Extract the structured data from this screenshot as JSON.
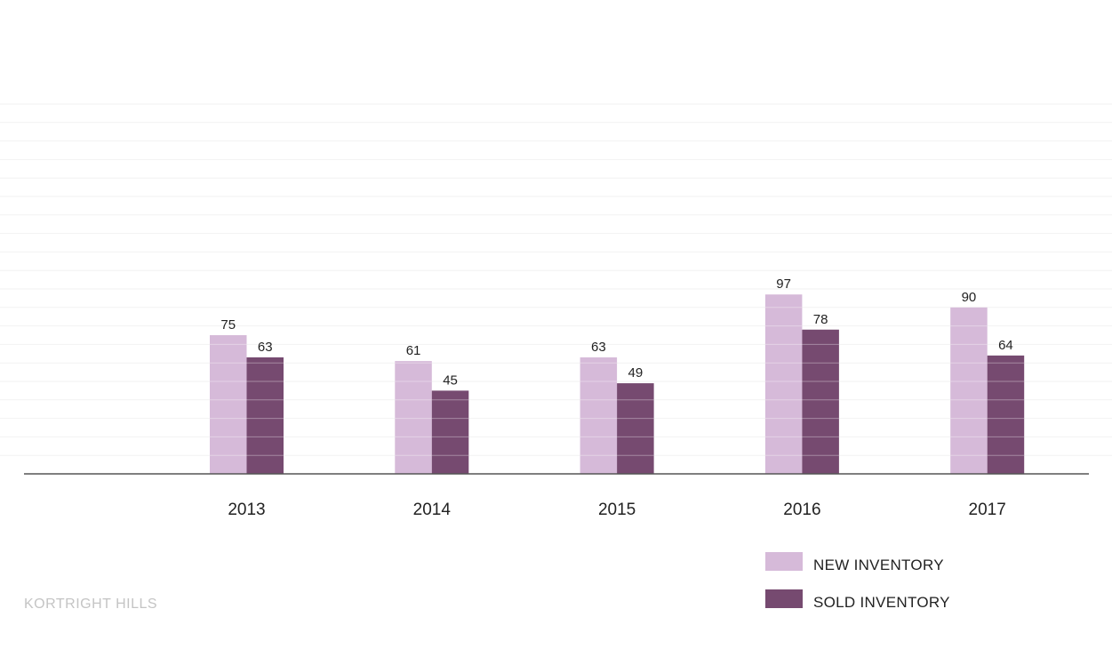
{
  "chart_data": {
    "type": "bar",
    "title": "",
    "xlabel": "",
    "ylabel": "",
    "categories": [
      "2013",
      "2014",
      "2015",
      "2016",
      "2017"
    ],
    "series": [
      {
        "name": "NEW INVENTORY",
        "values": [
          75,
          61,
          63,
          97,
          90
        ],
        "color": "#d6bad9"
      },
      {
        "name": "SOLD INVENTORY",
        "values": [
          63,
          45,
          49,
          78,
          64
        ],
        "color": "#764a70"
      }
    ],
    "ylim": [
      0,
      200
    ],
    "grid": true,
    "legend": "bottom-right",
    "data_labels": true
  },
  "footer": {
    "brand": "KORTRIGHT HILLS"
  },
  "colors": {
    "axis": "#555555",
    "grid": "#f2f2f2",
    "bar_stripe": "#ffffff"
  }
}
